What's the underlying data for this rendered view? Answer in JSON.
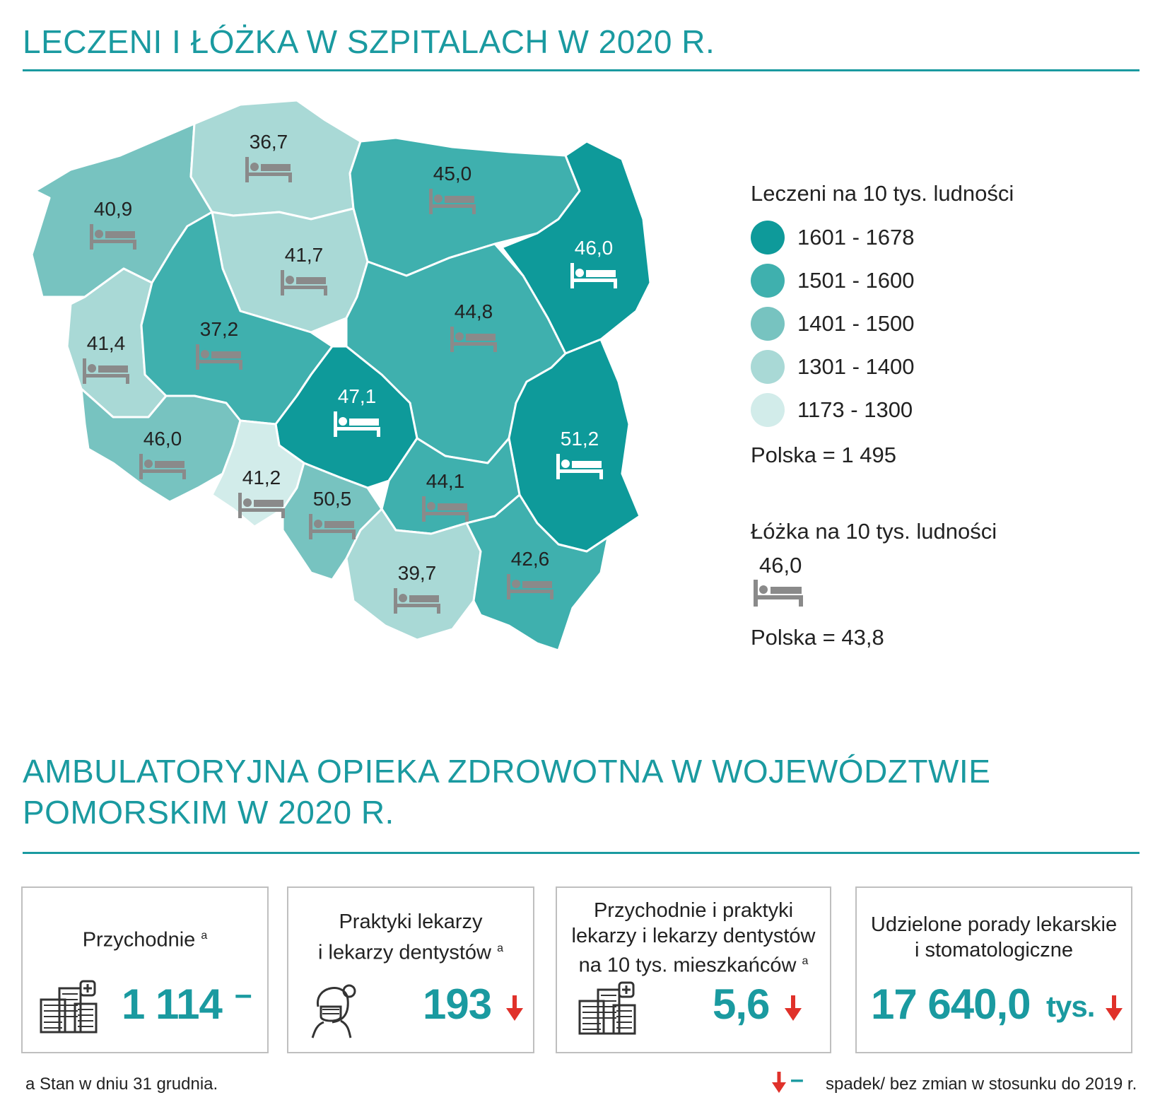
{
  "title_top": "LECZENI I ŁÓŻKA W SZPITALACH W 2020 R.",
  "title_bottom": "AMBULATORYJNA OPIEKA ZDROWOTNA W WOJEWÓDZTWIE POMORSKIM W 2020 R.",
  "colors": {
    "accent": "#1a9aa0",
    "c1": "#0e9a9a",
    "c2": "#3fb0ae",
    "c3": "#77c3c0",
    "c4": "#a9d9d6",
    "c5": "#d2ecea",
    "bed_icon": "#8a8a8a",
    "arrow_red": "#e0312a"
  },
  "map": {
    "regions": [
      {
        "name": "zachodniopomorskie",
        "beds": "40,9",
        "class": 3
      },
      {
        "name": "pomorskie",
        "beds": "36,7",
        "class": 4
      },
      {
        "name": "warminsko-mazurskie",
        "beds": "45,0",
        "class": 2
      },
      {
        "name": "podlaskie",
        "beds": "46,0",
        "class": 1
      },
      {
        "name": "kujawsko-pomorskie",
        "beds": "41,7",
        "class": 4
      },
      {
        "name": "lubuskie",
        "beds": "41,4",
        "class": 4
      },
      {
        "name": "wielkopolskie",
        "beds": "37,2",
        "class": 2
      },
      {
        "name": "mazowieckie",
        "beds": "44,8",
        "class": 2
      },
      {
        "name": "lodzkie",
        "beds": "47,1",
        "class": 1
      },
      {
        "name": "lubelskie",
        "beds": "51,2",
        "class": 1
      },
      {
        "name": "dolnoslaskie",
        "beds": "46,0",
        "class": 3
      },
      {
        "name": "opolskie",
        "beds": "41,2",
        "class": 5
      },
      {
        "name": "slaskie",
        "beds": "50,5",
        "class": 3
      },
      {
        "name": "swietokrzyskie",
        "beds": "44,1",
        "class": 2
      },
      {
        "name": "malopolskie",
        "beds": "39,7",
        "class": 4
      },
      {
        "name": "podkarpackie",
        "beds": "42,6",
        "class": 2
      }
    ]
  },
  "legend": {
    "treated_title": "Leczeni na 10 tys. ludności",
    "classes": [
      "1601 - 1678",
      "1501 - 1600",
      "1401 - 1500",
      "1301 - 1400",
      "1173 - 1300"
    ],
    "treated_poland": "Polska = 1 495",
    "beds_title": "Łóżka na 10 tys. ludności",
    "beds_example": "46,0",
    "beds_poland": "Polska = 43,8"
  },
  "boxes": [
    {
      "label": "Przychodnie",
      "sup": "a",
      "value": "1 114",
      "change": "no-change",
      "change_symbol": "–",
      "icon": "clinic-building-icon"
    },
    {
      "label_lines": [
        "Praktyki lekarzy",
        "i lekarzy dentystów"
      ],
      "sup": "a",
      "value": "193",
      "change": "decrease",
      "icon": "doctor-mask-icon"
    },
    {
      "label_lines": [
        "Przychodnie i praktyki",
        "lekarzy i lekarzy dentystów",
        "na 10 tys. mieszkańców"
      ],
      "sup": "a",
      "value": "5,6",
      "change": "decrease",
      "icon": "clinic-building-icon"
    },
    {
      "label_lines": [
        "Udzielone porady lekarskie",
        "i stomatologiczne"
      ],
      "value": "17 640,0",
      "unit": "tys.",
      "change": "decrease"
    }
  ],
  "footnote_left": "a Stan w dniu 31 grudnia.",
  "footnote_right_symbol": "–",
  "footnote_right": "spadek/ bez zmian w stosunku do 2019 r."
}
